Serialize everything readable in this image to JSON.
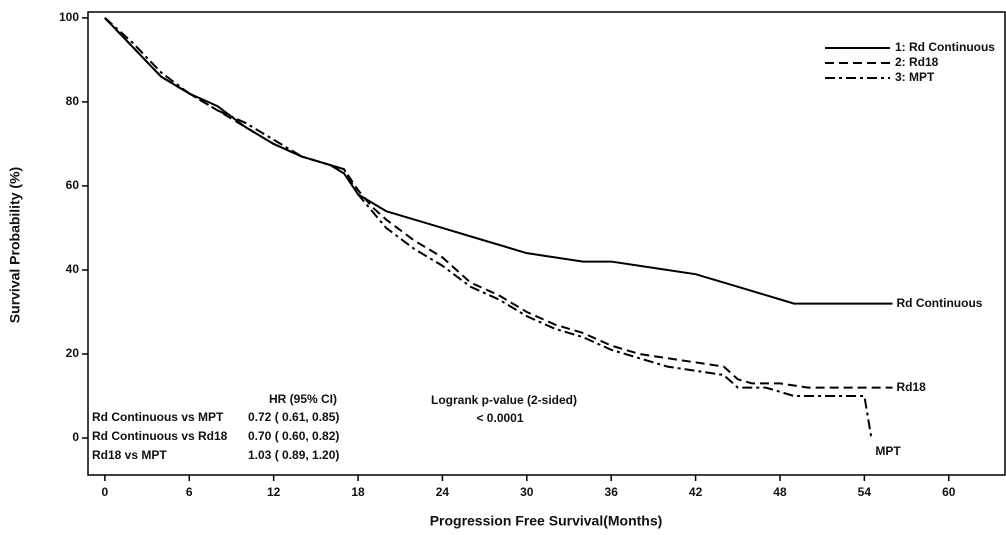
{
  "chart_data": {
    "type": "line",
    "x_label": "Progression Free Survival(Months)",
    "y_label": "Survival Probability (%)",
    "xlim": [
      -1.2,
      64
    ],
    "ylim": [
      -8.8,
      101.4
    ],
    "xticks": [
      0,
      6,
      12,
      18,
      24,
      30,
      36,
      42,
      48,
      54,
      60
    ],
    "yticks": [
      0,
      20,
      40,
      60,
      80,
      100
    ],
    "series": [
      {
        "name": "1: Rd Continuous",
        "color": "#000000",
        "dash": "solid",
        "end_label": "Rd Continuous",
        "x": [
          0,
          2,
          4,
          6,
          8,
          10,
          12,
          14,
          16,
          17,
          18,
          20,
          22,
          24,
          26,
          28,
          30,
          32,
          34,
          36,
          38,
          40,
          42,
          44,
          46,
          48,
          49,
          52,
          56
        ],
        "values": [
          100,
          93,
          86,
          82,
          79,
          74,
          70,
          67,
          65,
          63,
          58,
          54,
          52,
          50,
          48,
          46,
          44,
          43,
          42,
          42,
          41,
          40,
          39,
          37,
          35,
          33,
          32,
          32,
          32
        ]
      },
      {
        "name": "2: Rd18",
        "color": "#000000",
        "dash": "dashed",
        "end_label": "Rd18",
        "x": [
          0,
          2,
          4,
          6,
          8,
          10,
          12,
          14,
          16,
          17,
          18,
          19,
          20,
          22,
          24,
          26,
          28,
          30,
          32,
          34,
          36,
          38,
          40,
          42,
          44,
          45,
          46,
          48,
          50,
          54,
          56
        ],
        "values": [
          100,
          93,
          86,
          82,
          78,
          74,
          70,
          67,
          65,
          64,
          59,
          55,
          52,
          47,
          43,
          37,
          34,
          30,
          27,
          25,
          22,
          20,
          19,
          18,
          17,
          14,
          13,
          13,
          12,
          12,
          12
        ]
      },
      {
        "name": "3: MPT",
        "color": "#000000",
        "dash": "dashdot",
        "end_label": "MPT",
        "x": [
          0,
          2,
          4,
          6,
          8,
          10,
          12,
          14,
          16,
          17,
          18,
          20,
          22,
          24,
          26,
          28,
          30,
          32,
          34,
          36,
          38,
          40,
          42,
          44,
          45,
          47,
          49,
          52,
          54,
          54.5
        ],
        "values": [
          100,
          94,
          87,
          82,
          78,
          75,
          71,
          67,
          65,
          64,
          58,
          50,
          45,
          41,
          36,
          33,
          29,
          26,
          24,
          21,
          19,
          17,
          16,
          15,
          12,
          12,
          10,
          10,
          10,
          0
        ]
      }
    ],
    "hr_table": {
      "header": "HR (95% CI)",
      "rows": [
        [
          "Rd Continuous vs MPT",
          "0.72 ( 0.61,  0.85)"
        ],
        [
          "Rd Continuous vs Rd18",
          "0.70 ( 0.60,  0.82)"
        ],
        [
          "Rd18 vs MPT",
          "1.03 ( 0.89,  1.20)"
        ]
      ]
    },
    "logrank": {
      "label": "Logrank p-value (2-sided)",
      "value": "< 0.0001"
    }
  }
}
